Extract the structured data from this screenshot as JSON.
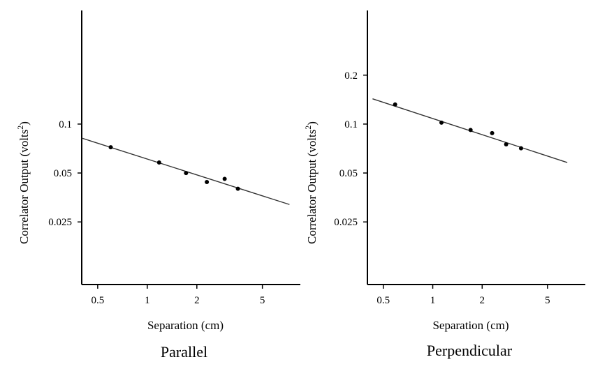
{
  "chart_data": [
    {
      "type": "scatter",
      "title": "Parallel",
      "xlabel": "Separation (cm)",
      "ylabel": "Correlator Output (volts²)",
      "ylabel_main": "Correlator Output (volts",
      "ylabel_sup": "2",
      "ylabel_close": ")",
      "xscale": "log",
      "yscale": "log",
      "xlim": [
        0.4,
        8.5
      ],
      "ylim": [
        0.0103,
        0.5
      ],
      "xticks": [
        0.5,
        1,
        2,
        5
      ],
      "xtick_labels": [
        "0.5",
        "1",
        "2",
        "5"
      ],
      "yticks": [
        0.025,
        0.05,
        0.1
      ],
      "ytick_labels": [
        "0.025",
        "0.05",
        "0.1"
      ],
      "grid": false,
      "points": [
        {
          "x": 0.6,
          "y": 0.072
        },
        {
          "x": 1.18,
          "y": 0.058
        },
        {
          "x": 1.72,
          "y": 0.05
        },
        {
          "x": 2.3,
          "y": 0.044
        },
        {
          "x": 2.95,
          "y": 0.046
        },
        {
          "x": 3.55,
          "y": 0.04
        }
      ],
      "fit_line": {
        "x": [
          0.4,
          7.3
        ],
        "y": [
          0.082,
          0.032
        ]
      }
    },
    {
      "type": "scatter",
      "title": "Perpendicular",
      "xlabel": "Separation (cm)",
      "ylabel": "Correlator Output (volts²)",
      "ylabel_main": "Correlator Output (volts",
      "ylabel_sup": "2",
      "ylabel_close": ")",
      "xscale": "log",
      "yscale": "log",
      "xlim": [
        0.4,
        8.5
      ],
      "ylim": [
        0.0103,
        0.5
      ],
      "xticks": [
        0.5,
        1,
        2,
        5
      ],
      "xtick_labels": [
        "0.5",
        "1",
        "2",
        "5"
      ],
      "yticks": [
        0.025,
        0.05,
        0.1,
        0.2
      ],
      "ytick_labels": [
        "0.025",
        "0.05",
        "0.1",
        "0.2"
      ],
      "grid": false,
      "points": [
        {
          "x": 0.59,
          "y": 0.132
        },
        {
          "x": 1.13,
          "y": 0.102
        },
        {
          "x": 1.7,
          "y": 0.092
        },
        {
          "x": 2.3,
          "y": 0.088
        },
        {
          "x": 2.8,
          "y": 0.075
        },
        {
          "x": 3.45,
          "y": 0.071
        }
      ],
      "fit_line": {
        "x": [
          0.43,
          6.6
        ],
        "y": [
          0.143,
          0.058
        ]
      }
    }
  ]
}
